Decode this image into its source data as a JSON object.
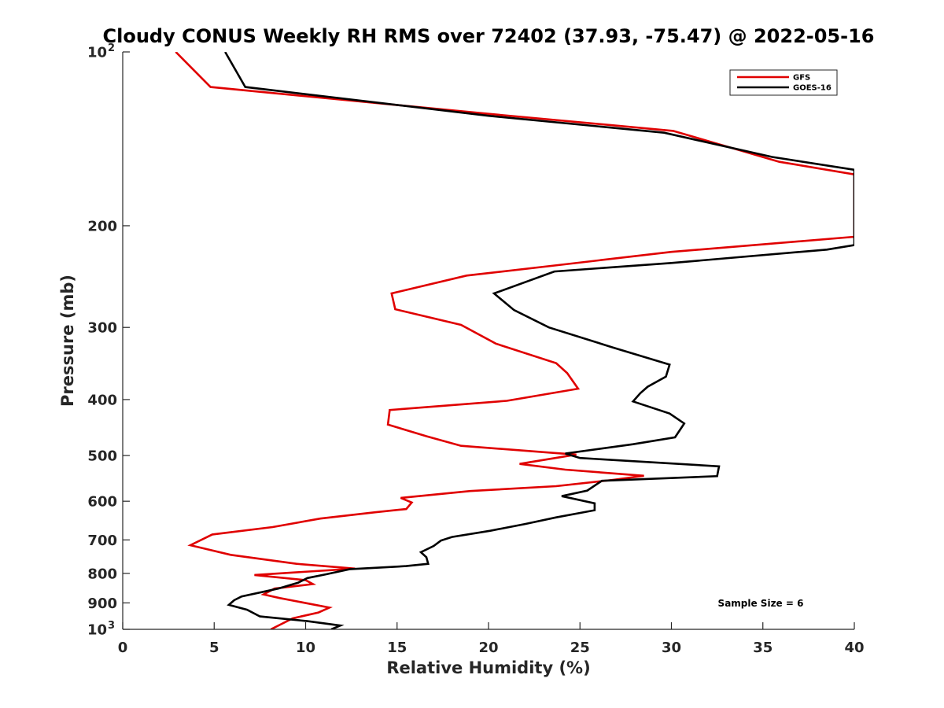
{
  "chart_data": {
    "type": "line",
    "title": "Cloudy CONUS Weekly RH RMS over 72402 (37.93, -75.47) @ 2022-05-16",
    "xlabel": "Relative Humidity (%)",
    "ylabel": "Pressure (mb)",
    "xlim": [
      0,
      40
    ],
    "ylim": [
      100,
      1000
    ],
    "y_scale": "log",
    "y_reversed": true,
    "grid": false,
    "legend_position": "top-right",
    "x_ticks": [
      0,
      5,
      10,
      15,
      20,
      25,
      30,
      35,
      40
    ],
    "x_tick_labels": [
      "0",
      "5",
      "10",
      "15",
      "20",
      "25",
      "30",
      "35",
      "40"
    ],
    "y_ticks": [
      200,
      300,
      400,
      500,
      600,
      700,
      800,
      900
    ],
    "y_tick_labels": [
      "200",
      "300",
      "400",
      "500",
      "600",
      "700",
      "800",
      "900"
    ],
    "y_end_labels": [
      {
        "value": 100,
        "base": "10",
        "exp": "2"
      },
      {
        "value": 1000,
        "base": "10",
        "exp": "3"
      }
    ],
    "annotation": "Sample Size = 6",
    "series": [
      {
        "name": "GFS",
        "color": "#e00000",
        "points": [
          [
            2.9,
            100
          ],
          [
            4.8,
            115
          ],
          [
            20,
            128
          ],
          [
            30.1,
            137
          ],
          [
            35.9,
            155
          ],
          [
            40,
            163
          ],
          [
            40,
            209
          ],
          [
            30,
            222
          ],
          [
            23.8,
            234
          ],
          [
            18.8,
            244
          ],
          [
            14.7,
            262
          ],
          [
            14.9,
            279
          ],
          [
            18.5,
            297
          ],
          [
            20.4,
            320
          ],
          [
            23.7,
            346
          ],
          [
            24.3,
            360
          ],
          [
            24.9,
            383
          ],
          [
            21,
            402
          ],
          [
            14.6,
            417
          ],
          [
            14.5,
            442
          ],
          [
            16.6,
            463
          ],
          [
            18.5,
            481
          ],
          [
            23.6,
            495
          ],
          [
            24.8,
            498
          ],
          [
            21.7,
            517
          ],
          [
            24.2,
            529
          ],
          [
            28.5,
            542
          ],
          [
            26.8,
            551
          ],
          [
            23.7,
            565
          ],
          [
            19,
            576
          ],
          [
            15.2,
            592
          ],
          [
            15.8,
            603
          ],
          [
            15.5,
            619
          ],
          [
            13.8,
            627
          ],
          [
            10.8,
            643
          ],
          [
            8.2,
            665
          ],
          [
            4.9,
            685
          ],
          [
            3.7,
            715
          ],
          [
            5.9,
            743
          ],
          [
            9.5,
            770
          ],
          [
            12.7,
            785
          ],
          [
            7.2,
            805
          ],
          [
            10,
            822
          ],
          [
            10.4,
            835
          ],
          [
            8.3,
            850
          ],
          [
            7.7,
            870
          ],
          [
            8.6,
            883
          ],
          [
            11.3,
            917
          ],
          [
            10.7,
            935
          ],
          [
            9.3,
            957
          ],
          [
            8.1,
            1000
          ]
        ]
      },
      {
        "name": "GOES-16",
        "color": "#000000",
        "points": [
          [
            5.6,
            100
          ],
          [
            6.7,
            115
          ],
          [
            20,
            129
          ],
          [
            29.6,
            138
          ],
          [
            35.5,
            152
          ],
          [
            40,
            160
          ],
          [
            40,
            216
          ],
          [
            38.5,
            220
          ],
          [
            30,
            232
          ],
          [
            23.6,
            240
          ],
          [
            20.3,
            262
          ],
          [
            21.4,
            280
          ],
          [
            23.3,
            300
          ],
          [
            26.8,
            325
          ],
          [
            29.9,
            348
          ],
          [
            29.7,
            365
          ],
          [
            28.7,
            380
          ],
          [
            28.3,
            390
          ],
          [
            27.9,
            403
          ],
          [
            29.9,
            423
          ],
          [
            30.7,
            440
          ],
          [
            30.2,
            465
          ],
          [
            27.9,
            478
          ],
          [
            24.2,
            496
          ],
          [
            25,
            505
          ],
          [
            32.6,
            522
          ],
          [
            32.5,
            543
          ],
          [
            26.2,
            553
          ],
          [
            25.4,
            575
          ],
          [
            24,
            588
          ],
          [
            25.8,
            605
          ],
          [
            25.8,
            622
          ],
          [
            23.7,
            640
          ],
          [
            22,
            657
          ],
          [
            20.1,
            675
          ],
          [
            18,
            692
          ],
          [
            17.4,
            702
          ],
          [
            17,
            717
          ],
          [
            16.3,
            735
          ],
          [
            16.6,
            750
          ],
          [
            16.7,
            770
          ],
          [
            15.5,
            777
          ],
          [
            12.4,
            787
          ],
          [
            11.1,
            803
          ],
          [
            10.1,
            815
          ],
          [
            9.6,
            830
          ],
          [
            8.5,
            850
          ],
          [
            6.5,
            877
          ],
          [
            6.1,
            890
          ],
          [
            5.8,
            907
          ],
          [
            6.8,
            925
          ],
          [
            7.5,
            950
          ],
          [
            10.1,
            968
          ],
          [
            11.9,
            985
          ],
          [
            11.4,
            1000
          ]
        ]
      }
    ]
  }
}
